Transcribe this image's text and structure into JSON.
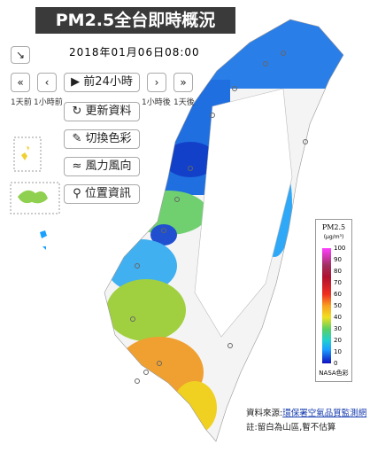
{
  "header": {
    "title": "PM2.5全台即時概況",
    "datetime": "2018年01月06日08:00"
  },
  "controls": {
    "first": "«",
    "prev": "‹",
    "play": "前24小時",
    "next": "›",
    "last": "»",
    "labels": [
      "1天前",
      "1小時前",
      "1小時後",
      "1天後"
    ],
    "buttons": [
      "更新資料",
      "切換色彩",
      "風力風向",
      "位置資訊"
    ]
  },
  "legend": {
    "title": "PM2.5",
    "unit": "(μg/m³)",
    "ticks": [
      100,
      90,
      80,
      70,
      60,
      50,
      40,
      30,
      20,
      10,
      0
    ],
    "range": [
      0,
      100
    ],
    "note": "NASA色彩"
  },
  "footer": {
    "source_label": "資料來源:",
    "source_link": "環保署空氣品質監測網",
    "note": "註:留白為山區,暫不估算"
  }
}
